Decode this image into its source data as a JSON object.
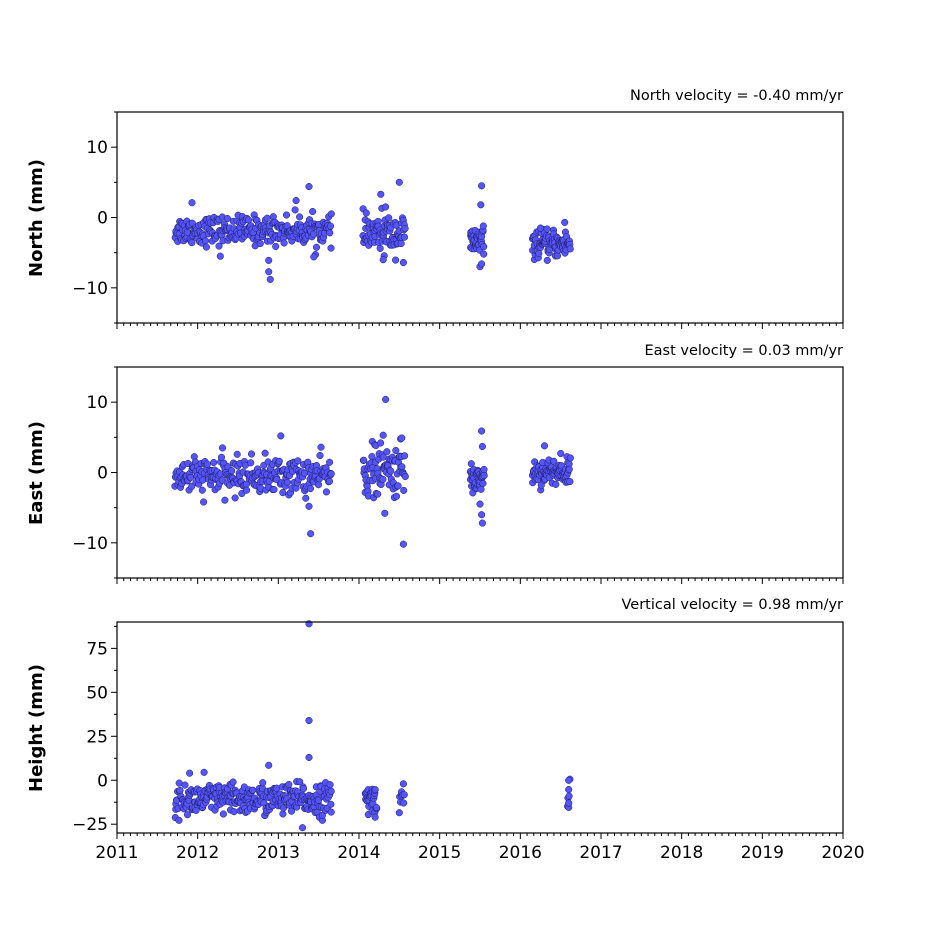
{
  "chart_data": [
    {
      "type": "scatter",
      "title": "North velocity = -0.40 mm/yr",
      "ylabel": "North (mm)",
      "xlim": [
        2011,
        2020
      ],
      "ylim": [
        -15,
        15
      ],
      "yticks": [
        10,
        0,
        -10
      ],
      "ytick_labels": [
        "10",
        "0",
        "−10"
      ],
      "color": "#5555ff",
      "segments": [
        {
          "start": 2011.72,
          "end": 2013.66,
          "center": -1.8,
          "spread": 1.0,
          "n": 260
        },
        {
          "start": 2014.05,
          "end": 2014.57,
          "center": -2.3,
          "spread": 1.3,
          "n": 85
        },
        {
          "start": 2015.38,
          "end": 2015.55,
          "center": -3.4,
          "spread": 1.0,
          "n": 40
        },
        {
          "start": 2016.15,
          "end": 2016.62,
          "center": -3.8,
          "spread": 0.9,
          "n": 90
        }
      ],
      "outliers": [
        [
          2011.93,
          2.1
        ],
        [
          2012.28,
          -5.5
        ],
        [
          2012.88,
          -6.1
        ],
        [
          2012.88,
          -7.7
        ],
        [
          2012.9,
          -8.8
        ],
        [
          2013.22,
          2.4
        ],
        [
          2013.38,
          4.4
        ],
        [
          2013.44,
          -5.6
        ],
        [
          2014.27,
          3.3
        ],
        [
          2014.33,
          1.5
        ],
        [
          2014.5,
          5.0
        ],
        [
          2014.55,
          -6.4
        ],
        [
          2014.3,
          -6.0
        ],
        [
          2015.52,
          4.5
        ],
        [
          2015.51,
          1.8
        ],
        [
          2015.5,
          -7.0
        ],
        [
          2015.52,
          -6.6
        ],
        [
          2016.55,
          -0.7
        ],
        [
          2016.25,
          -1.5
        ]
      ]
    },
    {
      "type": "scatter",
      "title": "East velocity = 0.03 mm/yr",
      "ylabel": "East (mm)",
      "xlim": [
        2011,
        2020
      ],
      "ylim": [
        -15,
        15
      ],
      "yticks": [
        10,
        0,
        -10
      ],
      "ytick_labels": [
        "10",
        "0",
        "−10"
      ],
      "color": "#5555ff",
      "segments": [
        {
          "start": 2011.72,
          "end": 2013.66,
          "center": -0.5,
          "spread": 1.3,
          "n": 260
        },
        {
          "start": 2014.05,
          "end": 2014.57,
          "center": 0.2,
          "spread": 1.8,
          "n": 85
        },
        {
          "start": 2015.38,
          "end": 2015.55,
          "center": -0.8,
          "spread": 1.2,
          "n": 40
        },
        {
          "start": 2016.15,
          "end": 2016.62,
          "center": 0.1,
          "spread": 0.9,
          "n": 90
        }
      ],
      "outliers": [
        [
          2013.03,
          5.2
        ],
        [
          2013.38,
          -4.8
        ],
        [
          2013.4,
          -8.7
        ],
        [
          2014.33,
          10.4
        ],
        [
          2014.3,
          5.3
        ],
        [
          2014.32,
          -5.8
        ],
        [
          2014.53,
          4.9
        ],
        [
          2014.55,
          -10.2
        ],
        [
          2015.52,
          5.9
        ],
        [
          2015.53,
          3.7
        ],
        [
          2015.52,
          -6.0
        ],
        [
          2015.53,
          -7.2
        ],
        [
          2015.5,
          -4.5
        ],
        [
          2016.3,
          3.8
        ],
        [
          2016.5,
          2.7
        ]
      ]
    },
    {
      "type": "scatter",
      "title": "Vertical velocity = 0.98 mm/yr",
      "ylabel": "Height (mm)",
      "xlim": [
        2011,
        2020
      ],
      "ylim": [
        -30,
        90
      ],
      "yticks": [
        75,
        50,
        25,
        0,
        -25
      ],
      "ytick_labels": [
        "75",
        "50",
        "25",
        "0",
        "−25"
      ],
      "xticks": [
        2011,
        2012,
        2013,
        2014,
        2015,
        2016,
        2017,
        2018,
        2019,
        2020
      ],
      "xtick_labels": [
        "2011",
        "2012",
        "2013",
        "2014",
        "2015",
        "2016",
        "2017",
        "2018",
        "2019",
        "2020"
      ],
      "color": "#5555ff",
      "segments": [
        {
          "start": 2011.72,
          "end": 2013.66,
          "center": -11.0,
          "spread": 4.5,
          "n": 300
        },
        {
          "start": 2014.08,
          "end": 2014.22,
          "center": -11.0,
          "spread": 4.5,
          "n": 30
        },
        {
          "start": 2014.5,
          "end": 2014.56,
          "center": -10.0,
          "spread": 4.0,
          "n": 8
        },
        {
          "start": 2016.59,
          "end": 2016.61,
          "center": -8.0,
          "spread": 4.0,
          "n": 6
        }
      ],
      "outliers": [
        [
          2013.38,
          89.0
        ],
        [
          2013.38,
          34.0
        ],
        [
          2013.38,
          13.0
        ],
        [
          2012.88,
          8.5
        ],
        [
          2011.9,
          4.0
        ],
        [
          2012.08,
          4.5
        ],
        [
          2016.6,
          0.0
        ],
        [
          2016.6,
          -13.0
        ],
        [
          2013.3,
          -27.0
        ],
        [
          2014.2,
          -21.0
        ],
        [
          2014.55,
          -2.0
        ]
      ]
    }
  ]
}
